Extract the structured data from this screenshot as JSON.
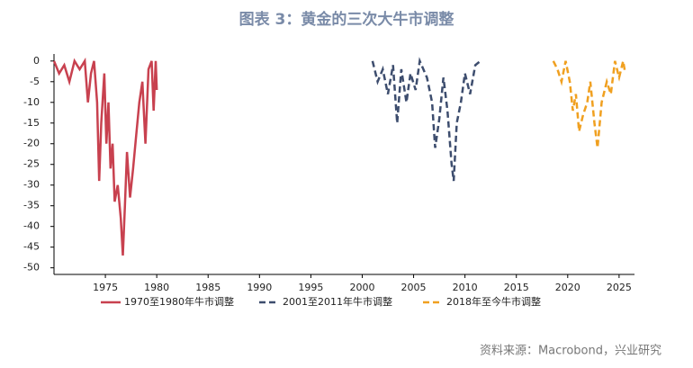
{
  "chart_data": {
    "type": "line",
    "title": "图表 3：黄金的三次大牛市调整",
    "source": "资料来源：Macrobond，兴业研究",
    "xlim": [
      1970,
      2026.5
    ],
    "xticks": [
      1975,
      1980,
      1985,
      1990,
      1995,
      2000,
      2005,
      2010,
      2015,
      2020,
      2025
    ],
    "ylim": [
      -51.6,
      1.7
    ],
    "yticks": [
      0,
      -5,
      -10,
      -15,
      -20,
      -25,
      -30,
      -35,
      -40,
      -45,
      -50
    ],
    "series": [
      {
        "name": "1970至1980年牛市调整",
        "color": "#c8414f",
        "dash": "solid",
        "x": [
          1970.0,
          1970.5,
          1971.0,
          1971.5,
          1972.0,
          1972.5,
          1973.0,
          1973.3,
          1973.6,
          1973.9,
          1974.2,
          1974.4,
          1974.6,
          1974.9,
          1975.1,
          1975.3,
          1975.5,
          1975.7,
          1975.9,
          1976.2,
          1976.5,
          1976.7,
          1976.9,
          1977.1,
          1977.4,
          1977.7,
          1978.0,
          1978.3,
          1978.6,
          1978.9,
          1979.2,
          1979.5,
          1979.7,
          1979.9,
          1980.0
        ],
        "values": [
          0,
          -3,
          -1,
          -5,
          0,
          -2,
          0,
          -10,
          -3,
          0,
          -10,
          -29,
          -15,
          -3,
          -20,
          -10,
          -26,
          -20,
          -34,
          -30,
          -38,
          -47,
          -35,
          -22,
          -33,
          -26,
          -18,
          -10,
          -5,
          -20,
          -2,
          0,
          -12,
          0,
          -7
        ]
      },
      {
        "name": "2001至2011年牛市调整",
        "color": "#3d4d6e",
        "dash": "dashed",
        "x": [
          2001.0,
          2001.5,
          2002.0,
          2002.5,
          2003.0,
          2003.4,
          2003.8,
          2004.3,
          2004.7,
          2005.2,
          2005.6,
          2006.3,
          2006.8,
          2007.1,
          2007.5,
          2007.9,
          2008.3,
          2008.7,
          2008.9,
          2009.2,
          2009.6,
          2010.0,
          2010.5,
          2011.0,
          2011.5
        ],
        "values": [
          0,
          -5,
          -2,
          -8,
          -1,
          -15,
          -2,
          -10,
          -3,
          -7,
          0,
          -4,
          -10,
          -21,
          -14,
          -4,
          -12,
          -25,
          -29,
          -15,
          -10,
          -3,
          -8,
          -1,
          0
        ]
      },
      {
        "name": "2018年至今牛市调整",
        "color": "#f0a020",
        "dash": "dashed",
        "x": [
          2018.6,
          2019.0,
          2019.4,
          2019.8,
          2020.2,
          2020.5,
          2020.8,
          2021.1,
          2021.5,
          2021.9,
          2022.2,
          2022.6,
          2022.9,
          2023.3,
          2023.8,
          2024.2,
          2024.6,
          2025.0,
          2025.4,
          2025.6
        ],
        "values": [
          0,
          -2,
          -5,
          0,
          -5,
          -12,
          -8,
          -17,
          -13,
          -10,
          -5,
          -15,
          -21,
          -10,
          -5,
          -8,
          0,
          -4,
          0,
          -3
        ]
      }
    ]
  }
}
